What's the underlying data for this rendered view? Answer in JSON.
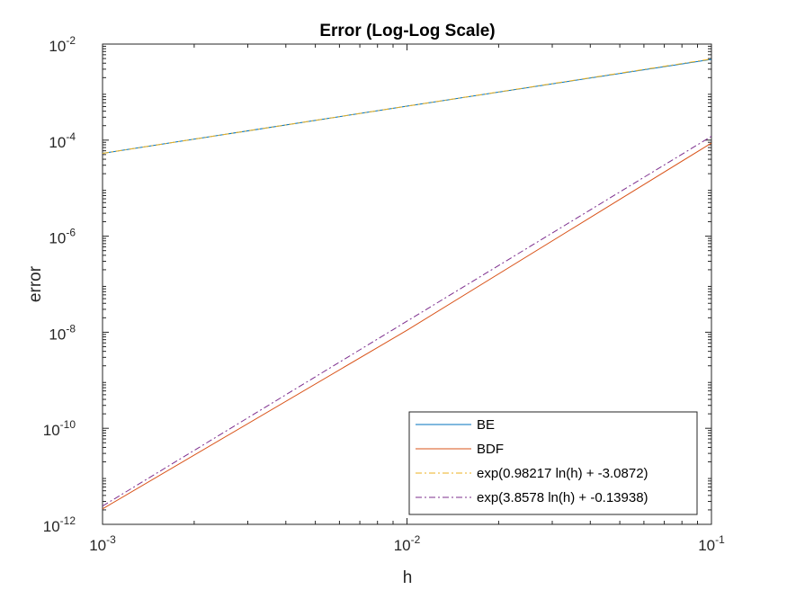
{
  "chart_data": {
    "type": "line",
    "title": "Error (Log-Log Scale)",
    "xlabel": "h",
    "ylabel": "error",
    "xscale": "log",
    "yscale": "log",
    "xlim": [
      0.001,
      0.1
    ],
    "ylim": [
      1e-12,
      0.01
    ],
    "grid": false,
    "legend_position": "bottom-right",
    "x_ticks": [
      {
        "base": "10",
        "exp": "-3",
        "value": 0.001
      },
      {
        "base": "10",
        "exp": "-2",
        "value": 0.01
      },
      {
        "base": "10",
        "exp": "-1",
        "value": 0.1
      }
    ],
    "y_ticks": [
      {
        "base": "10",
        "exp": "-12",
        "value": 1e-12
      },
      {
        "base": "10",
        "exp": "-10",
        "value": 1e-10
      },
      {
        "base": "10",
        "exp": "-8",
        "value": 1e-08
      },
      {
        "base": "10",
        "exp": "-6",
        "value": 1e-06
      },
      {
        "base": "10",
        "exp": "-4",
        "value": 0.0001
      },
      {
        "base": "10",
        "exp": "-2",
        "value": 0.01
      }
    ],
    "series": [
      {
        "name": "BE",
        "color": "#0072BD",
        "dash": "solid",
        "x": [
          0.001,
          0.01,
          0.1
        ],
        "y": [
          5.3e-05,
          0.00051,
          0.0048
        ]
      },
      {
        "name": "BDF",
        "color": "#D95319",
        "dash": "solid",
        "x": [
          0.001,
          0.01,
          0.1
        ],
        "y": [
          2.1e-12,
          1.1e-08,
          8.7e-05
        ]
      },
      {
        "name": "exp(0.98217 ln(h) + -3.0872)",
        "color": "#EDB120",
        "dash": "dashdot",
        "x": [
          0.001,
          0.01,
          0.1
        ],
        "y": [
          5.3e-05,
          0.00051,
          0.0049
        ]
      },
      {
        "name": "exp(3.8578 ln(h) + -0.13938)",
        "color": "#7E2F8E",
        "dash": "dashdot",
        "x": [
          0.001,
          0.01,
          0.1
        ],
        "y": [
          2.4e-12,
          1.7e-08,
          0.00012
        ]
      }
    ]
  }
}
